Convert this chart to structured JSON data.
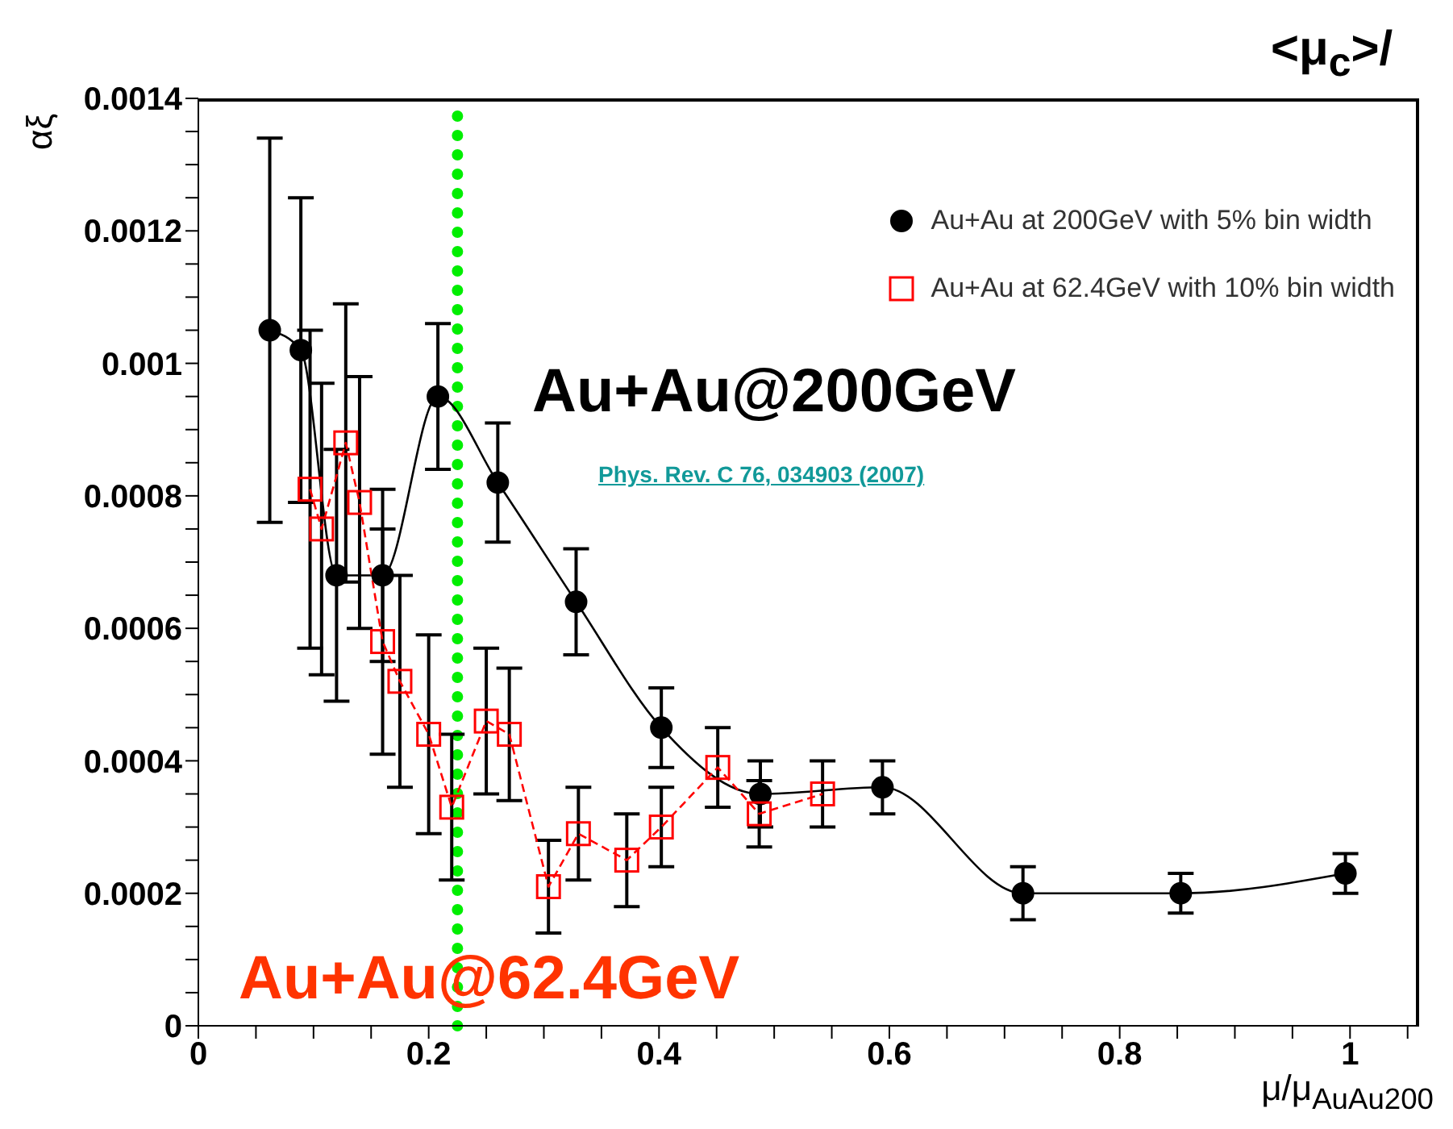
{
  "chart_data": {
    "type": "line",
    "xlabel": "μ/μ$_{AuAu200}$",
    "ylabel": "αξ",
    "xlim": [
      0,
      1.06
    ],
    "xticks": [
      0,
      {
        "value": 0.05,
        "label": null
      },
      0.2,
      {
        "value": 0.1,
        "label": null
      },
      {
        "value": 0.15,
        "label": null
      },
      {
        "value": 0.25,
        "label": null
      },
      {
        "value": 0.3,
        "label": null
      },
      {
        "value": 0.35,
        "label": null
      },
      0.4,
      {
        "value": 0.45,
        "label": null
      },
      {
        "value": 0.5,
        "label": null
      },
      {
        "value": 0.55,
        "label": null
      },
      0.6,
      {
        "value": 0.65,
        "label": null
      },
      {
        "value": 0.7,
        "label": null
      },
      {
        "value": 0.75,
        "label": null
      },
      0.8,
      {
        "value": 0.85,
        "label": null
      },
      {
        "value": 0.9,
        "label": null
      },
      {
        "value": 0.95,
        "label": null
      },
      1,
      {
        "value": 1.05,
        "label": null
      }
    ],
    "ylim": [
      0,
      0.0014
    ],
    "yticks": [
      0,
      {
        "value": 5e-05,
        "label": null
      },
      {
        "value": 0.0001,
        "label": null
      },
      {
        "value": 0.00015,
        "label": null
      },
      0.0002,
      {
        "value": 0.00025,
        "label": null
      },
      {
        "value": 0.0003,
        "label": null
      },
      {
        "value": 0.00035,
        "label": null
      },
      0.0004,
      {
        "value": 0.00045,
        "label": null
      },
      {
        "value": 0.0005,
        "label": null
      },
      {
        "value": 0.00055,
        "label": null
      },
      0.0006,
      {
        "value": 0.00065,
        "label": null
      },
      {
        "value": 0.0007,
        "label": null
      },
      {
        "value": 0.00075,
        "label": null
      },
      0.0008,
      {
        "value": 0.00085,
        "label": null
      },
      {
        "value": 0.0009,
        "label": null
      },
      {
        "value": 0.00095,
        "label": null
      },
      0.001,
      {
        "value": 0.00105,
        "label": null
      },
      {
        "value": 0.0011,
        "label": null
      },
      {
        "value": 0.00115,
        "label": null
      },
      0.0012,
      {
        "value": 0.00125,
        "label": null
      },
      {
        "value": 0.0013,
        "label": null
      },
      {
        "value": 0.00135,
        "label": null
      },
      0.0014
    ],
    "grid": false,
    "legend": "top right",
    "series": [
      {
        "name": "Au+Au at 200GeV with 5% bin width",
        "color": "#000000",
        "marker": "circle",
        "line_style": "solid",
        "x": [
          0.062,
          0.089,
          0.12,
          0.16,
          0.208,
          0.26,
          0.328,
          0.402,
          0.488,
          0.594,
          0.716,
          0.853,
          0.996
        ],
        "values": [
          0.00105,
          0.00102,
          0.00068,
          0.00068,
          0.00095,
          0.00082,
          0.00064,
          0.00045,
          0.00035,
          0.00036,
          0.0002,
          0.0002,
          0.00023
        ],
        "errors": [
          0.00029,
          0.00023,
          0.00019,
          0.00013,
          0.00011,
          9e-05,
          8e-05,
          6e-05,
          5e-05,
          4e-05,
          4e-05,
          3e-05,
          3e-05
        ]
      },
      {
        "name": "Au+Au at 62.4GeV with 10% bin width",
        "color": "#ff0000",
        "marker": "square",
        "line_style": "dashed",
        "x": [
          0.097,
          0.107,
          0.128,
          0.14,
          0.16,
          0.175,
          0.2,
          0.22,
          0.25,
          0.27,
          0.304,
          0.33,
          0.372,
          0.402,
          0.451,
          0.487,
          0.542
        ],
        "values": [
          0.00081,
          0.00075,
          0.00088,
          0.00079,
          0.00058,
          0.00052,
          0.00044,
          0.00033,
          0.00046,
          0.00044,
          0.00021,
          0.00029,
          0.00025,
          0.0003,
          0.00039,
          0.00032,
          0.00035
        ],
        "errors": [
          0.00024,
          0.00022,
          0.00021,
          0.00019,
          0.00017,
          0.00016,
          0.00015,
          0.00011,
          0.00011,
          0.0001,
          7e-05,
          7e-05,
          7e-05,
          6e-05,
          6e-05,
          5e-05,
          5e-05
        ]
      }
    ],
    "ref_lines": [
      {
        "axis": "x",
        "value": 0.225,
        "color": "#00ee00",
        "line_style": "dotted"
      }
    ],
    "annotations": [
      "Au+Au@200GeV",
      "Phys. Rev. C 76, 034903 (2007)",
      "Au+Au@62.4GeV",
      "<μ$_{c}$>/"
    ]
  }
}
